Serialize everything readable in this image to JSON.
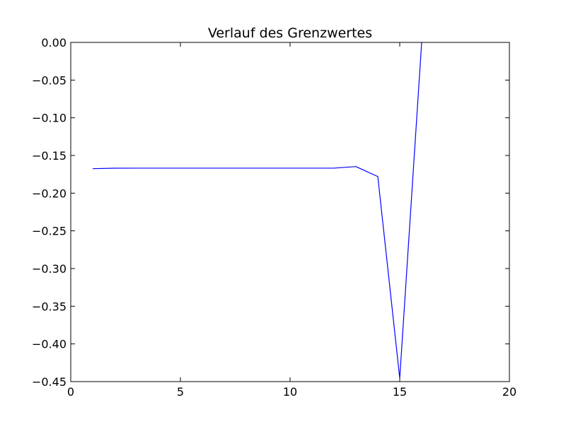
{
  "chart_data": {
    "type": "line",
    "title": "Verlauf des Grenzwertes",
    "xlabel": "",
    "ylabel": "",
    "xlim": [
      0,
      20
    ],
    "ylim": [
      -0.45,
      0.0
    ],
    "xticks": [
      0,
      5,
      10,
      15,
      20
    ],
    "xtick_labels": [
      "0",
      "5",
      "10",
      "15",
      "20"
    ],
    "yticks": [
      0.0,
      -0.05,
      -0.1,
      -0.15,
      -0.2,
      -0.25,
      -0.3,
      -0.35,
      -0.4,
      -0.45
    ],
    "ytick_labels": [
      "0.00",
      "−0.05",
      "−0.10",
      "−0.15",
      "−0.20",
      "−0.25",
      "−0.30",
      "−0.35",
      "−0.40",
      "−0.45"
    ],
    "grid": false,
    "legend": "none",
    "series": [
      {
        "color": "#0000ff",
        "x": [
          1,
          2,
          3,
          4,
          5,
          6,
          7,
          8,
          9,
          10,
          11,
          12,
          13,
          14,
          15,
          16
        ],
        "y": [
          -0.1675,
          -0.1669,
          -0.1668,
          -0.1668,
          -0.1668,
          -0.1668,
          -0.1668,
          -0.1668,
          -0.1668,
          -0.1668,
          -0.1668,
          -0.1668,
          -0.1647,
          -0.178,
          -0.4455,
          0.0
        ]
      }
    ]
  }
}
